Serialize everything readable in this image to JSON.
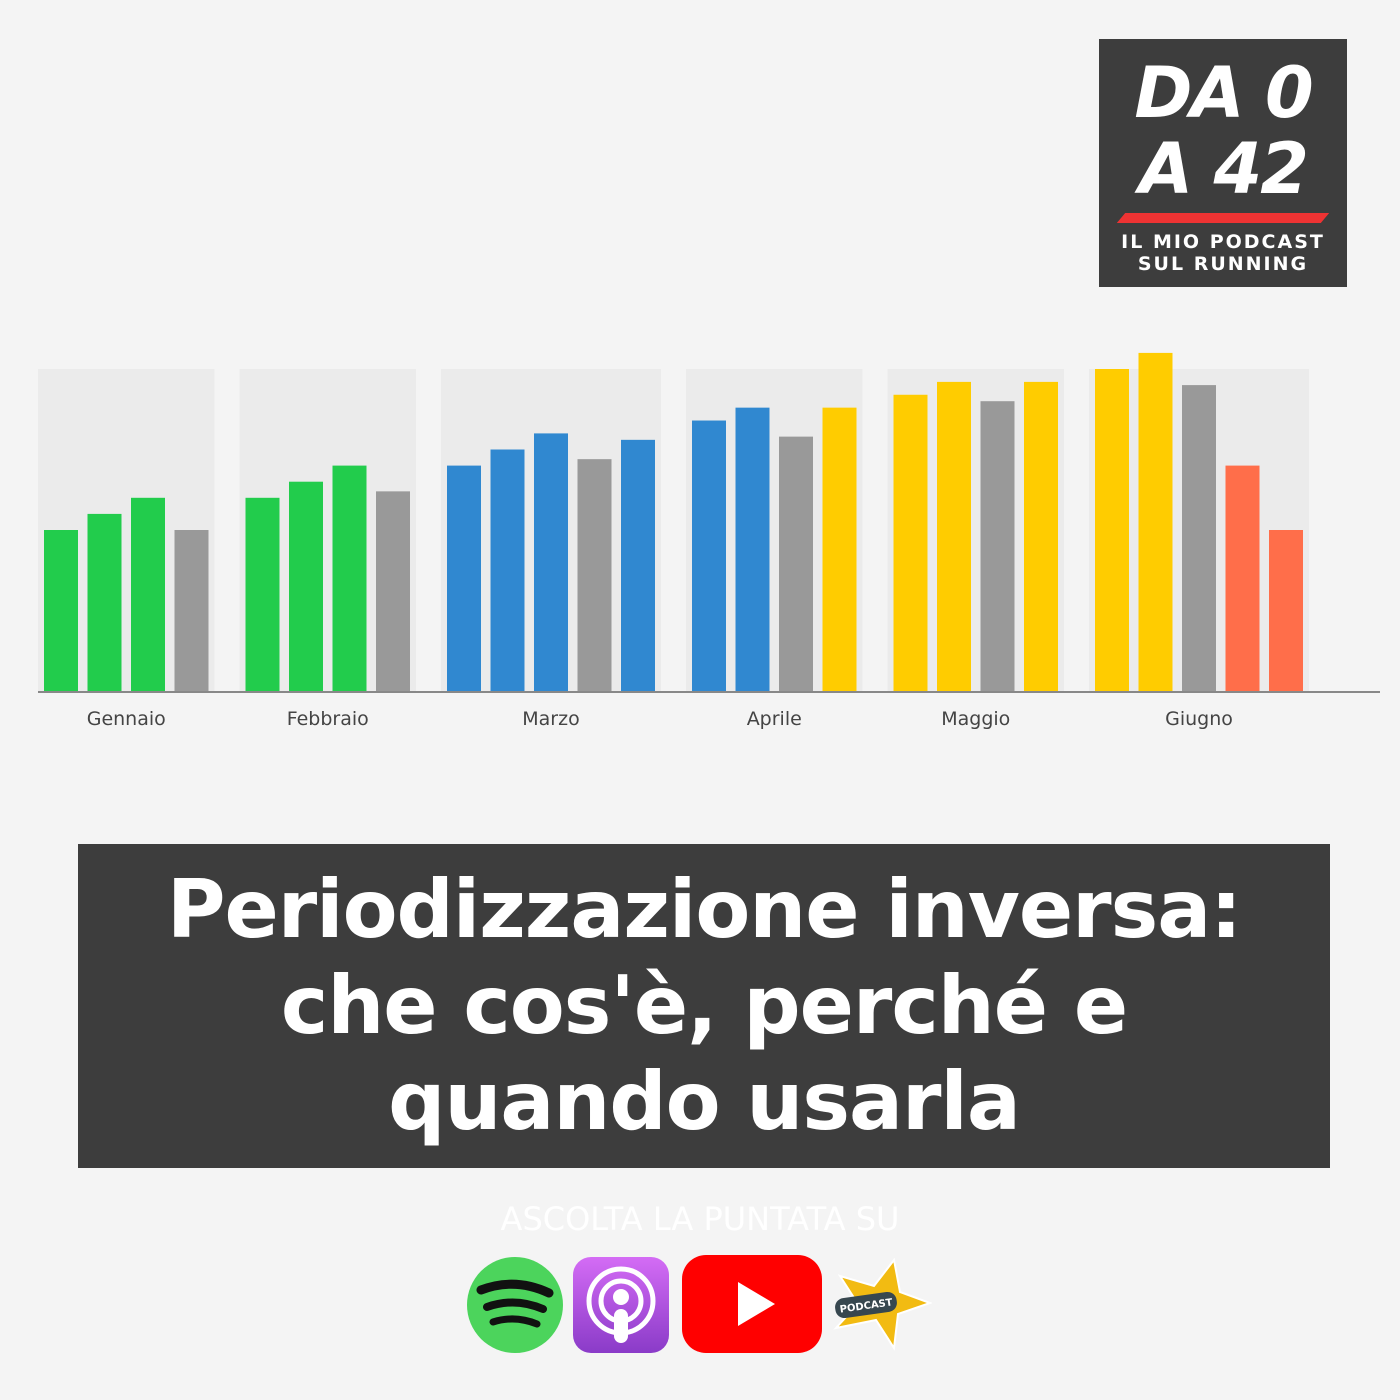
{
  "logo": {
    "line1": "DA 0",
    "line2": "A 42",
    "tagline1": "IL MIO PODCAST",
    "tagline2": "SUL RUNNING",
    "accent": "#ee3333"
  },
  "chart_data": {
    "type": "bar",
    "title": "",
    "xlabel": "",
    "ylabel": "",
    "grid": false,
    "y_axis_labels": "none",
    "categories": [
      "Gennaio",
      "Febbraio",
      "Marzo",
      "Aprile",
      "Maggio",
      "Giugno"
    ],
    "groups": [
      {
        "category": "Gennaio",
        "values": [
          50,
          55,
          60,
          50
        ],
        "colors": [
          "#22cc4c",
          "#22cc4c",
          "#22cc4c",
          "#999999"
        ]
      },
      {
        "category": "Febbraio",
        "values": [
          60,
          65,
          70,
          62
        ],
        "colors": [
          "#22cc4c",
          "#22cc4c",
          "#22cc4c",
          "#999999"
        ]
      },
      {
        "category": "Marzo",
        "values": [
          70,
          75,
          80,
          72,
          78
        ],
        "colors": [
          "#3088d0",
          "#3088d0",
          "#3088d0",
          "#999999",
          "#3088d0"
        ]
      },
      {
        "category": "Aprile",
        "values": [
          84,
          88,
          79,
          88
        ],
        "colors": [
          "#3088d0",
          "#3088d0",
          "#999999",
          "#ffcc00"
        ]
      },
      {
        "category": "Maggio",
        "values": [
          92,
          96,
          90,
          96
        ],
        "colors": [
          "#ffcc00",
          "#ffcc00",
          "#999999",
          "#ffcc00"
        ]
      },
      {
        "category": "Giugno",
        "values": [
          100,
          105,
          95,
          70,
          50
        ],
        "colors": [
          "#ffcc00",
          "#ffcc00",
          "#999999",
          "#ff6e4a",
          "#ff6e4a"
        ]
      }
    ],
    "ylim": [
      0,
      100
    ],
    "panel_color": "#ebebeb"
  },
  "title": {
    "line1": "Periodizzazione inversa:",
    "line2": "che cos'è, perché e",
    "line3": "quando usarla"
  },
  "listen_label": "ASCOLTA LA PUNTATA SU",
  "platforms": [
    {
      "name": "spotify-icon",
      "color": "#4cd45c"
    },
    {
      "name": "apple-podcasts-icon",
      "color": "#a34ce0"
    },
    {
      "name": "youtube-icon",
      "color": "#ff0000"
    },
    {
      "name": "podcast-star-icon",
      "label": "PODCAST",
      "color": "#f2bb12"
    }
  ]
}
